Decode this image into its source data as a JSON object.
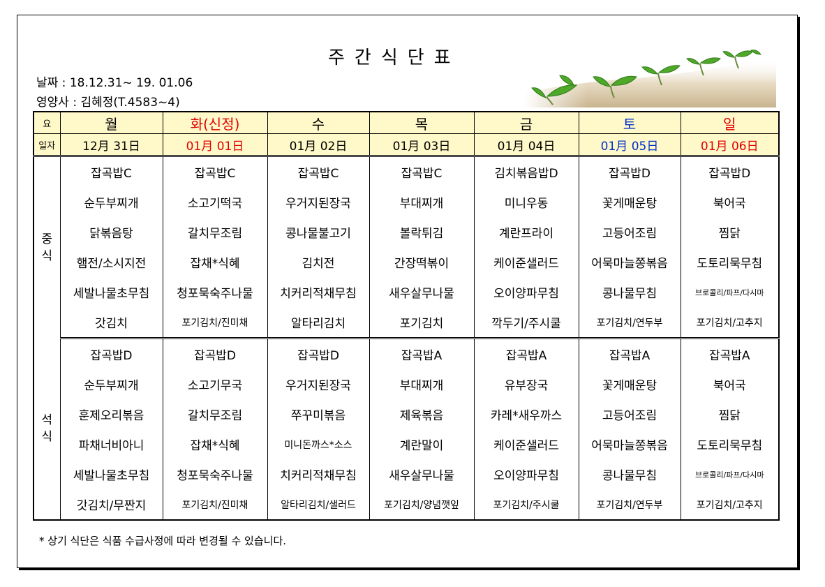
{
  "title": "주간식단표",
  "date_label": "날짜 : 18.12.31~ 19. 01.06",
  "dietitian_label": "영양사 : 김혜정(T.4583~4)",
  "header": {
    "day_label": "요",
    "date_label": "일자",
    "days": [
      "월",
      "화(신정)",
      "수",
      "목",
      "금",
      "토",
      "일"
    ],
    "dates": [
      "12月 31日",
      "01月 01日",
      "01月 02日",
      "01月 03日",
      "01月 04日",
      "01月 05日",
      "01月 06日"
    ]
  },
  "lunch": {
    "label_top": "중",
    "label_bottom": "식",
    "rows": [
      [
        "잡곡밥C",
        "잡곡밥C",
        "잡곡밥C",
        "잡곡밥C",
        "김치볶음밥D",
        "잡곡밥D",
        "잡곡밥D"
      ],
      [
        "순두부찌개",
        "소고기떡국",
        "우거지된장국",
        "부대찌개",
        "미니우동",
        "꽃게매운탕",
        "북어국"
      ],
      [
        "닭볶음탕",
        "갈치무조림",
        "콩나물불고기",
        "볼락튀김",
        "계란프라이",
        "고등어조림",
        "찜닭"
      ],
      [
        "햄전/소시지전",
        "잡채*식혜",
        "김치전",
        "간장떡볶이",
        "케이준샐러드",
        "어묵마늘쫑볶음",
        "도토리묵무침"
      ],
      [
        "세발나물초무침",
        "청포묵숙주나물",
        "치커리적채무침",
        "새우살무나물",
        "오이양파무침",
        "콩나물무침",
        "브로콜리/파프/다시마"
      ],
      [
        "갓김치",
        "포기김치/진미채",
        "알타리김치",
        "포기김치",
        "깍두기/주시쿨",
        "포기김치/연두부",
        "포기김치/고추지"
      ]
    ]
  },
  "dinner": {
    "label_top": "석",
    "label_bottom": "식",
    "rows": [
      [
        "잡곡밥D",
        "잡곡밥D",
        "잡곡밥D",
        "잡곡밥A",
        "잡곡밥A",
        "잡곡밥A",
        "잡곡밥A"
      ],
      [
        "순두부찌개",
        "소고기무국",
        "우거지된장국",
        "부대찌개",
        "유부장국",
        "꽃게매운탕",
        "북어국"
      ],
      [
        "훈제오리볶음",
        "갈치무조림",
        "쭈꾸미볶음",
        "제육볶음",
        "카레*새우까스",
        "고등어조림",
        "찜닭"
      ],
      [
        "파채너비아니",
        "잡채*식혜",
        "미니돈까스*소스",
        "계란말이",
        "케이준샐러드",
        "어묵마늘쫑볶음",
        "도토리묵무침"
      ],
      [
        "세발나물초무침",
        "청포묵숙주나물",
        "치커리적채무침",
        "새우살무나물",
        "오이양파무침",
        "콩나물무침",
        "브로콜리/파프/다시마"
      ],
      [
        "갓김치/무짠지",
        "포기김치/진미채",
        "알타리김치/샐러드",
        "포기김치/양념깻잎",
        "포기김치/주시쿨",
        "포기김치/연두부",
        "포기김치/고추지"
      ]
    ]
  },
  "note": "* 상기 식단은 식품 수급사정에 따라 변경될 수 있습니다.",
  "colors": {
    "header_bg": "#fff8c8",
    "holiday_red": "#e00000",
    "saturday_blue": "#0030c8"
  }
}
